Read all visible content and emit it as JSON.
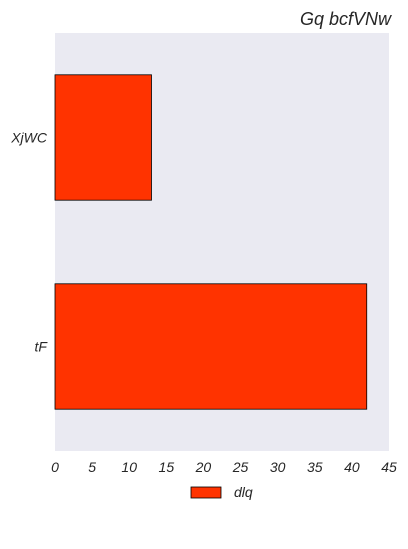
{
  "chart_data": {
    "type": "bar",
    "orientation": "horizontal",
    "title": "Gq bcfVNw",
    "categories": [
      "XjWC",
      "tF"
    ],
    "series": [
      {
        "name": "dlq",
        "values": [
          13,
          42
        ],
        "color": "#ff3300"
      }
    ],
    "xlim": [
      0,
      45
    ],
    "xticks": [
      "0",
      "5",
      "10",
      "15",
      "20",
      "25",
      "30",
      "35",
      "40",
      "45"
    ],
    "xlabel": "",
    "ylabel": "",
    "grid": false,
    "legend_position": "bottom",
    "plot_background": "#eaeaf2"
  }
}
